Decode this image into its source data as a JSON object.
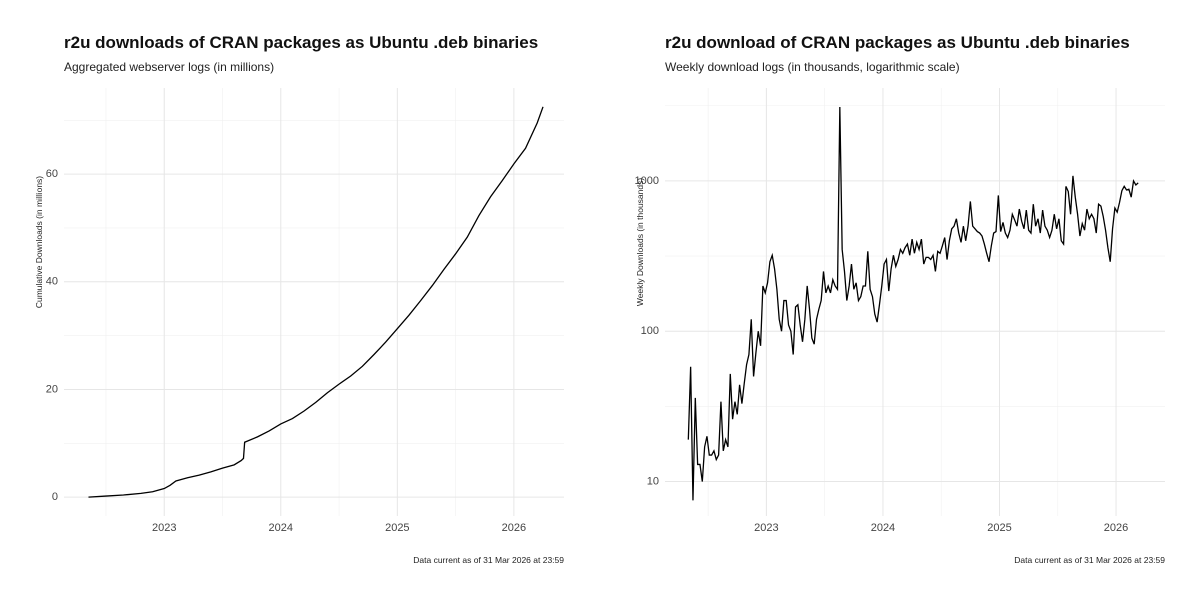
{
  "chart_data": [
    {
      "type": "line",
      "title": "r2u downloads of CRAN packages as Ubuntu .deb binaries",
      "subtitle": "Aggregated webserver logs (in millions)",
      "y_label": "Cumulative Downloads (in millions)",
      "caption": "Data current as of 31 Mar 2026 at 23:59",
      "x": [
        2022.35,
        2022.5,
        2022.65,
        2022.8,
        2022.9,
        2023.0,
        2023.05,
        2023.1,
        2023.2,
        2023.3,
        2023.4,
        2023.5,
        2023.6,
        2023.66,
        2023.68,
        2023.69,
        2023.8,
        2023.9,
        2024.0,
        2024.1,
        2024.2,
        2024.3,
        2024.4,
        2024.5,
        2024.6,
        2024.7,
        2024.8,
        2024.9,
        2025.0,
        2025.1,
        2025.2,
        2025.3,
        2025.4,
        2025.5,
        2025.6,
        2025.7,
        2025.8,
        2025.9,
        2026.0,
        2026.1,
        2026.2,
        2026.25
      ],
      "series": [
        {
          "color": "#000000",
          "values": [
            0,
            0.2,
            0.4,
            0.7,
            1.0,
            1.6,
            2.2,
            3.0,
            3.6,
            4.1,
            4.7,
            5.4,
            6.0,
            6.8,
            7.2,
            10.2,
            11.2,
            12.3,
            13.6,
            14.6,
            16.0,
            17.6,
            19.4,
            21.0,
            22.5,
            24.3,
            26.5,
            28.8,
            31.3,
            33.8,
            36.5,
            39.3,
            42.3,
            45.2,
            48.3,
            52.3,
            55.8,
            58.8,
            61.9,
            64.8,
            69.5,
            72.5
          ]
        }
      ],
      "xlim": [
        2022.14,
        2026.43
      ],
      "xticks": [
        2023,
        2024,
        2025,
        2026
      ],
      "ylim": [
        -3.5,
        76
      ],
      "yticks": [
        0,
        20,
        40,
        60
      ],
      "grid": true,
      "minor_grid": true,
      "log_y": false
    },
    {
      "type": "line",
      "title": "r2u download of CRAN packages as Ubuntu .deb binaries",
      "subtitle": "Weekly download logs (in thousands, logarithmic scale)",
      "y_label": "Weekly Downloads (in thousands)",
      "caption": "Data current as of 31 Mar 2026 at 23:59",
      "x": [
        2022.33,
        2022.35,
        2022.37,
        2022.39,
        2022.41,
        2022.43,
        2022.45,
        2022.47,
        2022.49,
        2022.51,
        2022.53,
        2022.55,
        2022.57,
        2022.59,
        2022.61,
        2022.63,
        2022.65,
        2022.67,
        2022.69,
        2022.71,
        2022.73,
        2022.75,
        2022.77,
        2022.79,
        2022.81,
        2022.83,
        2022.85,
        2022.87,
        2022.89,
        2022.91,
        2022.93,
        2022.95,
        2022.97,
        2022.99,
        2023.01,
        2023.03,
        2023.05,
        2023.07,
        2023.09,
        2023.11,
        2023.13,
        2023.15,
        2023.17,
        2023.19,
        2023.21,
        2023.23,
        2023.25,
        2023.27,
        2023.29,
        2023.31,
        2023.33,
        2023.35,
        2023.37,
        2023.39,
        2023.41,
        2023.43,
        2023.45,
        2023.47,
        2023.49,
        2023.51,
        2023.53,
        2023.55,
        2023.57,
        2023.59,
        2023.61,
        2023.63,
        2023.65,
        2023.67,
        2023.69,
        2023.71,
        2023.73,
        2023.75,
        2023.77,
        2023.79,
        2023.81,
        2023.83,
        2023.85,
        2023.87,
        2023.89,
        2023.91,
        2023.93,
        2023.95,
        2023.97,
        2023.99,
        2024.01,
        2024.03,
        2024.05,
        2024.07,
        2024.09,
        2024.11,
        2024.13,
        2024.15,
        2024.17,
        2024.19,
        2024.21,
        2024.23,
        2024.25,
        2024.27,
        2024.29,
        2024.31,
        2024.33,
        2024.35,
        2024.37,
        2024.39,
        2024.41,
        2024.43,
        2024.45,
        2024.47,
        2024.49,
        2024.51,
        2024.53,
        2024.55,
        2024.57,
        2024.59,
        2024.61,
        2024.63,
        2024.65,
        2024.67,
        2024.69,
        2024.71,
        2024.73,
        2024.75,
        2024.77,
        2024.79,
        2024.81,
        2024.83,
        2024.85,
        2024.87,
        2024.89,
        2024.91,
        2024.93,
        2024.95,
        2024.97,
        2024.99,
        2025.01,
        2025.03,
        2025.05,
        2025.07,
        2025.09,
        2025.11,
        2025.13,
        2025.15,
        2025.17,
        2025.19,
        2025.21,
        2025.23,
        2025.25,
        2025.27,
        2025.29,
        2025.31,
        2025.33,
        2025.35,
        2025.37,
        2025.39,
        2025.41,
        2025.43,
        2025.45,
        2025.47,
        2025.49,
        2025.51,
        2025.53,
        2025.55,
        2025.57,
        2025.59,
        2025.61,
        2025.63,
        2025.65,
        2025.67,
        2025.69,
        2025.71,
        2025.73,
        2025.75,
        2025.77,
        2025.79,
        2025.81,
        2025.83,
        2025.85,
        2025.87,
        2025.89,
        2025.91,
        2025.93,
        2025.95,
        2025.97,
        2025.99,
        2026.01,
        2026.03,
        2026.05,
        2026.07,
        2026.09,
        2026.11,
        2026.13,
        2026.15,
        2026.17,
        2026.19
      ],
      "series": [
        {
          "color": "#000000",
          "values": [
            19,
            58,
            7.5,
            36,
            13,
            13,
            10,
            17,
            20,
            15,
            15,
            16,
            14,
            15,
            34,
            16,
            19,
            17,
            52,
            26,
            34,
            28,
            44,
            33,
            45,
            60,
            70,
            120,
            50,
            72,
            100,
            80,
            200,
            180,
            210,
            290,
            320,
            260,
            190,
            120,
            100,
            160,
            160,
            110,
            100,
            70,
            145,
            150,
            110,
            85,
            120,
            200,
            140,
            90,
            82,
            120,
            140,
            160,
            250,
            180,
            200,
            180,
            220,
            200,
            190,
            3100,
            350,
            250,
            160,
            200,
            280,
            190,
            210,
            160,
            170,
            200,
            200,
            340,
            190,
            170,
            130,
            115,
            150,
            200,
            280,
            300,
            185,
            260,
            320,
            270,
            300,
            350,
            330,
            360,
            380,
            320,
            410,
            330,
            390,
            350,
            410,
            280,
            310,
            310,
            300,
            320,
            250,
            340,
            330,
            370,
            420,
            300,
            400,
            480,
            500,
            560,
            450,
            390,
            500,
            400,
            500,
            730,
            500,
            480,
            460,
            450,
            430,
            380,
            330,
            290,
            370,
            450,
            460,
            800,
            460,
            530,
            450,
            420,
            470,
            600,
            550,
            500,
            650,
            540,
            480,
            640,
            470,
            450,
            700,
            500,
            560,
            450,
            640,
            500,
            470,
            420,
            470,
            600,
            480,
            560,
            400,
            380,
            920,
            850,
            600,
            1080,
            780,
            600,
            430,
            520,
            470,
            650,
            560,
            600,
            560,
            450,
            700,
            680,
            580,
            470,
            360,
            290,
            480,
            660,
            620,
            720,
            860,
            920,
            870,
            880,
            780,
            1000,
            940,
            970
          ]
        }
      ],
      "xlim": [
        2022.13,
        2026.42
      ],
      "xticks": [
        2023,
        2024,
        2025,
        2026
      ],
      "ylim": [
        5.9,
        4150
      ],
      "yticks": [
        10,
        100,
        1000
      ],
      "grid": true,
      "minor_grid": true,
      "log_y": true
    }
  ]
}
